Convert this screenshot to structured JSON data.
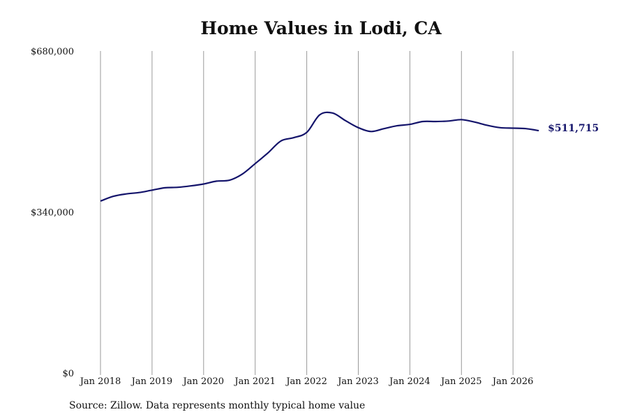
{
  "title": "Home Values in Lodi, CA",
  "source": "Source: Zillow. Data represents monthly typical home value",
  "colors": {
    "line": "#14146b",
    "grid": "#999999",
    "text": "#111111",
    "label": "#14146b"
  },
  "chart_data": {
    "type": "line",
    "title": "Home Values in Lodi, CA",
    "xlabel": "",
    "ylabel": "",
    "ylim": [
      0,
      680000
    ],
    "yticks": [
      0,
      340000,
      680000
    ],
    "ytick_labels": [
      "$0",
      "$340,000",
      "$680,000"
    ],
    "xticks": [
      "2018-01",
      "2019-01",
      "2020-01",
      "2021-01",
      "2022-01",
      "2023-01",
      "2024-01",
      "2025-01",
      "2026-01"
    ],
    "xtick_labels": [
      "Jan 2018",
      "Jan 2019",
      "Jan 2020",
      "Jan 2021",
      "Jan 2022",
      "Jan 2023",
      "Jan 2024",
      "Jan 2025",
      "Jan 2026"
    ],
    "grid": "vertical",
    "end_label": "$511,715",
    "series": [
      {
        "values": [
          {
            "x": "2018-01",
            "y": 363000
          },
          {
            "x": "2018-04",
            "y": 373000
          },
          {
            "x": "2018-07",
            "y": 378000
          },
          {
            "x": "2018-10",
            "y": 381000
          },
          {
            "x": "2019-01",
            "y": 386000
          },
          {
            "x": "2019-04",
            "y": 391000
          },
          {
            "x": "2019-07",
            "y": 392000
          },
          {
            "x": "2019-10",
            "y": 395000
          },
          {
            "x": "2020-01",
            "y": 399000
          },
          {
            "x": "2020-04",
            "y": 405000
          },
          {
            "x": "2020-07",
            "y": 407000
          },
          {
            "x": "2020-10",
            "y": 420000
          },
          {
            "x": "2021-01",
            "y": 442000
          },
          {
            "x": "2021-04",
            "y": 465000
          },
          {
            "x": "2021-07",
            "y": 490000
          },
          {
            "x": "2021-10",
            "y": 497000
          },
          {
            "x": "2022-01",
            "y": 508000
          },
          {
            "x": "2022-04",
            "y": 545000
          },
          {
            "x": "2022-07",
            "y": 549000
          },
          {
            "x": "2022-10",
            "y": 533000
          },
          {
            "x": "2023-01",
            "y": 518000
          },
          {
            "x": "2023-04",
            "y": 510000
          },
          {
            "x": "2023-07",
            "y": 516000
          },
          {
            "x": "2023-10",
            "y": 522000
          },
          {
            "x": "2024-01",
            "y": 525000
          },
          {
            "x": "2024-04",
            "y": 531000
          },
          {
            "x": "2024-07",
            "y": 531000
          },
          {
            "x": "2024-10",
            "y": 532000
          },
          {
            "x": "2025-01",
            "y": 535000
          },
          {
            "x": "2025-04",
            "y": 530000
          },
          {
            "x": "2025-07",
            "y": 523000
          },
          {
            "x": "2025-10",
            "y": 518000
          },
          {
            "x": "2026-01",
            "y": 517000
          },
          {
            "x": "2026-04",
            "y": 516000
          },
          {
            "x": "2026-07",
            "y": 511715
          }
        ]
      }
    ]
  }
}
